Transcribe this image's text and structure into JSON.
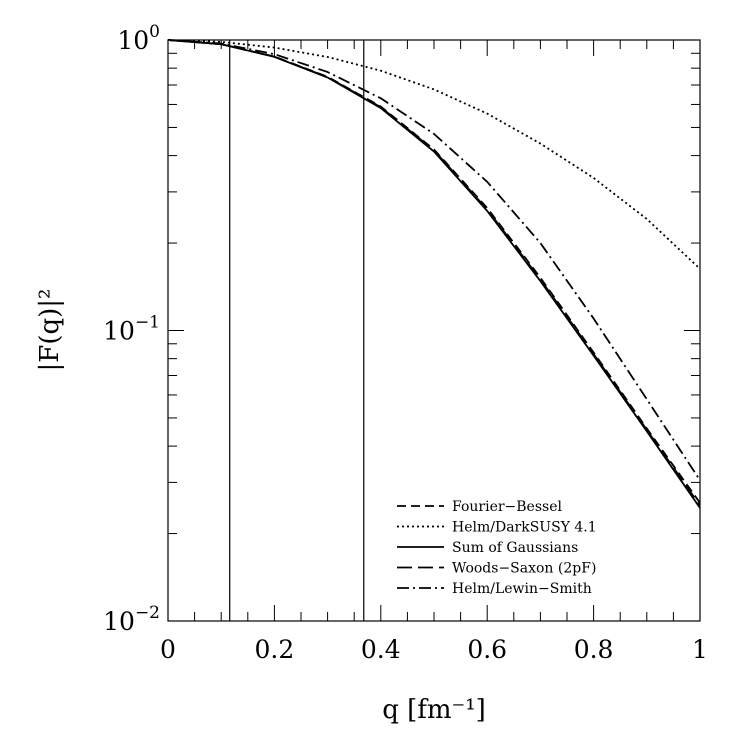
{
  "chart_data": {
    "type": "line",
    "xlabel": "q [fm⁻¹]",
    "ylabel": "|F(q)|²",
    "xlim": [
      0,
      1
    ],
    "ylim": [
      0.01,
      1
    ],
    "yscale": "log",
    "x_ticks": [
      {
        "value": 0,
        "label": "0"
      },
      {
        "value": 0.2,
        "label": "0.2"
      },
      {
        "value": 0.4,
        "label": "0.4"
      },
      {
        "value": 0.6,
        "label": "0.6"
      },
      {
        "value": 0.8,
        "label": "0.8"
      },
      {
        "value": 1,
        "label": "1"
      }
    ],
    "y_ticks": [
      {
        "value": 1,
        "base": "10",
        "exp": "0"
      },
      {
        "value": 0.1,
        "base": "10",
        "exp": "−1"
      },
      {
        "value": 0.01,
        "base": "10",
        "exp": "−2"
      }
    ],
    "vertical_lines": [
      0.116,
      0.368
    ],
    "grid": false,
    "legend_position": "bottom-right",
    "x": [
      0,
      0.1,
      0.2,
      0.3,
      0.4,
      0.5,
      0.6,
      0.7,
      0.8,
      0.9,
      1.0
    ],
    "series": [
      {
        "name": "Fourier−Bessel",
        "dash": "dashed",
        "values": [
          1.0,
          0.968,
          0.877,
          0.747,
          0.59,
          0.42,
          0.264,
          0.152,
          0.084,
          0.046,
          0.0255
        ]
      },
      {
        "name": "Helm/DarkSUSY 4.1",
        "dash": "dotted",
        "values": [
          1.0,
          0.985,
          0.942,
          0.874,
          0.784,
          0.676,
          0.558,
          0.44,
          0.335,
          0.242,
          0.163
        ]
      },
      {
        "name": "Sum of Gaussians",
        "dash": "solid",
        "values": [
          1.0,
          0.967,
          0.875,
          0.743,
          0.583,
          0.413,
          0.258,
          0.148,
          0.082,
          0.045,
          0.0245
        ]
      },
      {
        "name": "Woods−Saxon (2pF)",
        "dash": "longdash",
        "values": [
          1.0,
          0.967,
          0.876,
          0.745,
          0.587,
          0.417,
          0.261,
          0.15,
          0.083,
          0.0455,
          0.025
        ]
      },
      {
        "name": "Helm/Lewin−Smith",
        "dash": "dashdot",
        "values": [
          1.0,
          0.972,
          0.894,
          0.776,
          0.63,
          0.475,
          0.325,
          0.2,
          0.11,
          0.058,
          0.0305
        ]
      }
    ]
  }
}
